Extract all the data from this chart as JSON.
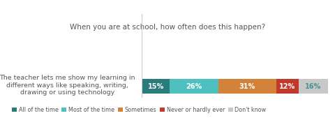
{
  "title": "When you are at school, how often does this happen?",
  "question": "The teacher lets me show my learning in\ndifferent ways like speaking, writing,\ndrawing or using technology",
  "categories": [
    "All of the time",
    "Most of the time",
    "Sometimes",
    "Never or hardly ever",
    "Don't know"
  ],
  "values": [
    15,
    26,
    31,
    12,
    16
  ],
  "colors": [
    "#2a7b7b",
    "#4ec0c0",
    "#d4813a",
    "#c0392b",
    "#c8c8c8"
  ],
  "bar_labels": [
    "15%",
    "26%",
    "31%",
    "12%",
    "16%"
  ],
  "label_colors": [
    "#ffffff",
    "#ffffff",
    "#ffffff",
    "#ffffff",
    "#4a9090"
  ],
  "title_color": "#555555",
  "question_color": "#555555",
  "divider_color": "#cccccc",
  "background_color": "#ffffff",
  "label_fontsize": 7.0,
  "title_fontsize": 7.5,
  "question_fontsize": 6.8,
  "legend_fontsize": 5.8
}
